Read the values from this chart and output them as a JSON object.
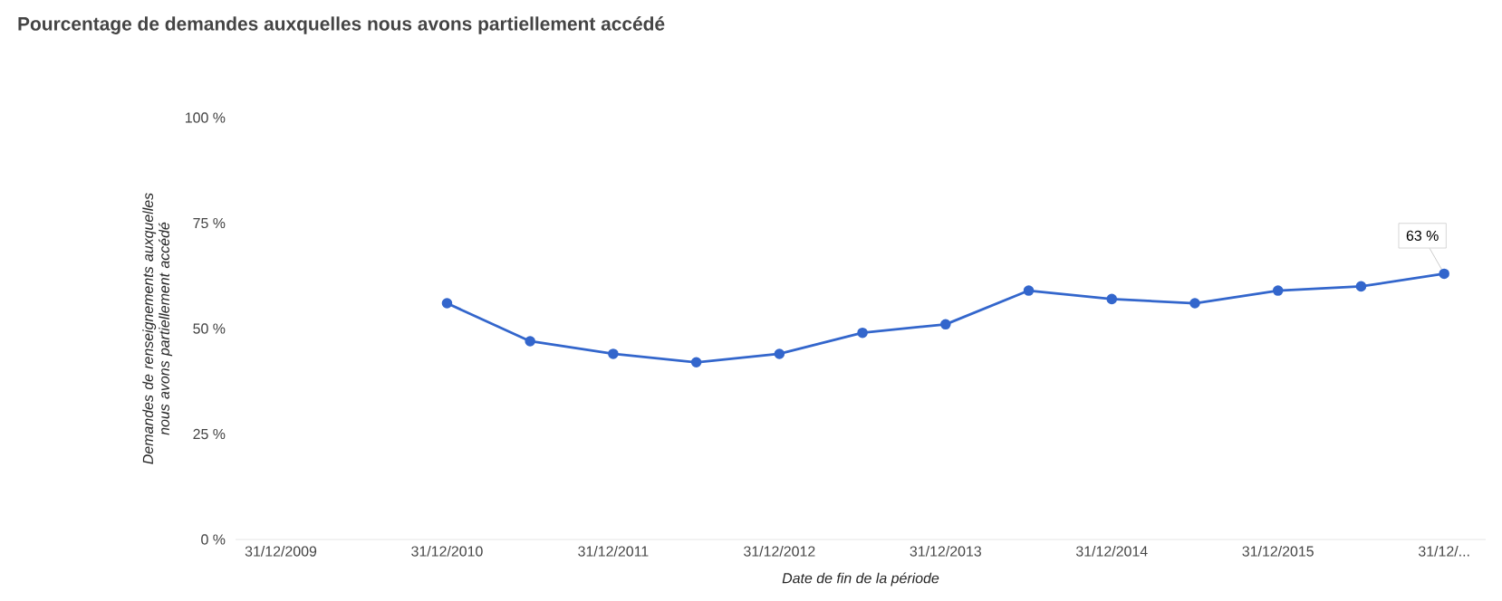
{
  "chart_data": {
    "type": "line",
    "title": "Pourcentage de demandes auxquelles nous avons partiellement accédé",
    "xlabel": "Date de fin de la période",
    "ylabel": "Demandes de renseignements auxquelles nous avons partiellement accédé",
    "categories": [
      "31/12/2009",
      null,
      "31/12/2010",
      null,
      "31/12/2011",
      null,
      "31/12/2012",
      null,
      "31/12/2013",
      null,
      "31/12/2014",
      null,
      "31/12/2015",
      null,
      "31/12/..."
    ],
    "values": [
      null,
      null,
      56,
      47,
      44,
      42,
      44,
      49,
      51,
      59,
      57,
      56,
      59,
      60,
      63
    ],
    "color": "#3366cc",
    "marker": "circle",
    "line_style": "solid",
    "grid": false,
    "ylim": [
      0,
      100
    ],
    "yticks": [
      {
        "value": 0,
        "label": "0 %"
      },
      {
        "value": 25,
        "label": "25 %"
      },
      {
        "value": 50,
        "label": "50 %"
      },
      {
        "value": 75,
        "label": "75 %"
      },
      {
        "value": 100,
        "label": "100 %"
      }
    ],
    "annotations": [
      {
        "text": "63 %",
        "x": "31/12/...",
        "y": 63
      }
    ]
  }
}
